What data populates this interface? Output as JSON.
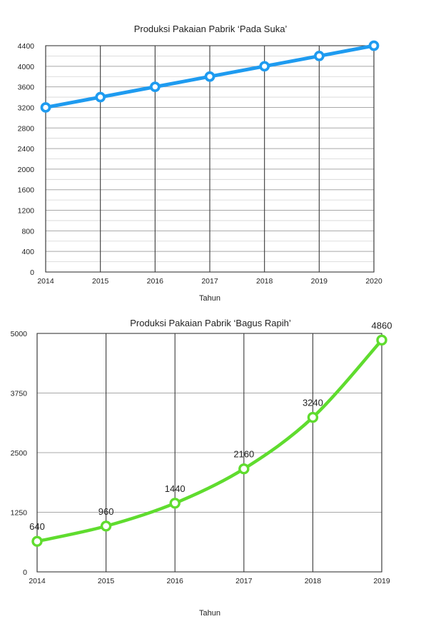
{
  "chart_data": [
    {
      "type": "line",
      "title": "Produksi Pakaian Pabrik ‘Pada Suka’",
      "xlabel": "Tahun",
      "ylabel": "",
      "categories": [
        "2014",
        "2015",
        "2016",
        "2017",
        "2018",
        "2019",
        "2020"
      ],
      "yticks": [
        "0",
        "400",
        "800",
        "1200",
        "1600",
        "2000",
        "2400",
        "2800",
        "3200",
        "3600",
        "4000",
        "4400"
      ],
      "ylim": [
        0,
        4400
      ],
      "series": [
        {
          "values": [
            3200,
            3400,
            3600,
            3800,
            4000,
            4200,
            4400
          ],
          "color": "#1e9bf0"
        }
      ],
      "grid": true,
      "minor_grid": true,
      "data_labels": false
    },
    {
      "type": "line",
      "title": "Produksi Pakaian Pabrik ‘Bagus Rapih’",
      "xlabel": "Tahun",
      "ylabel": "",
      "categories": [
        "2014",
        "2015",
        "2016",
        "2017",
        "2018",
        "2019"
      ],
      "yticks": [
        "0",
        "1250",
        "2500",
        "3750",
        "5000"
      ],
      "ylim": [
        0,
        5000
      ],
      "series": [
        {
          "values": [
            640,
            960,
            1440,
            2160,
            3240,
            4860
          ],
          "color": "#5fdc2e"
        }
      ],
      "point_labels": [
        "640",
        "960",
        "1440",
        "2160",
        "3240",
        "4860"
      ],
      "grid": true,
      "minor_grid": false,
      "data_labels": true,
      "smooth": true
    }
  ]
}
